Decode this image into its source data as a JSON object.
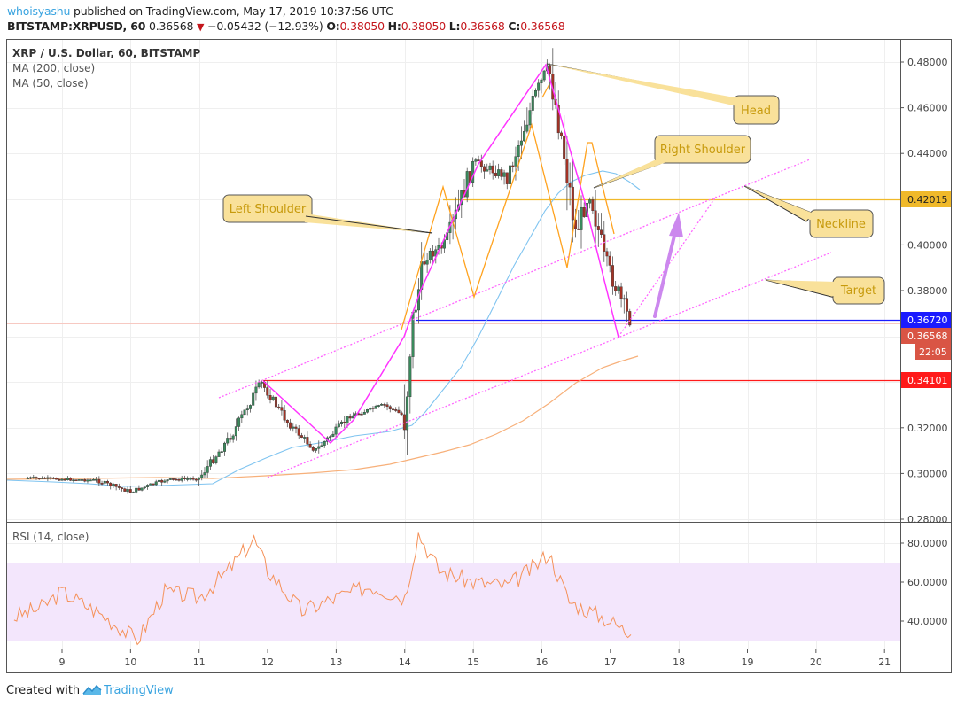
{
  "header": {
    "author": "whoisyashu",
    "published_text": " published on TradingView.com, May 17, 2019 10:37:56 UTC",
    "symbol": "BITSTAMP:XRPUSD, 60",
    "last_price": "0.36568",
    "change_icon": "down-triangle-icon",
    "change": "−0.05432 (−12.93%)",
    "o_label": "O:",
    "o_value": "0.38050",
    "h_label": "H:",
    "h_value": "0.38050",
    "l_label": "L:",
    "l_value": "0.36568",
    "c_label": "C:",
    "c_value": "0.36568"
  },
  "legend": {
    "title": "XRP / U.S. Dollar, 60, BITSTAMP",
    "ma200": "MA (200, close)",
    "ma50": "MA (50, close)",
    "rsi": "RSI (14, close)"
  },
  "footer": {
    "created_with": "Created with",
    "brand": "TradingView",
    "logo_icon": "tradingview-logo-icon"
  },
  "colors": {
    "up_candle": "#3a8a5c",
    "down_candle": "#a33225",
    "ma200": "#f7b07a",
    "ma50": "#7fc4f0",
    "pattern_magenta": "#ff33ff",
    "pattern_orange": "#ffa21e",
    "neckline_level": "#f0b92a",
    "support_blue": "#1b1bff",
    "support_red": "#ff1a1a",
    "current_price": "#d95545",
    "rsi_line": "#f5925a",
    "rsi_band": "#f3e6fc",
    "callout_fill": "#f9e19a",
    "arrow": "#cc88ee"
  },
  "price_tags": [
    {
      "label": "0.42015",
      "bg": "#f0b92a",
      "fg": "#222222"
    },
    {
      "label": "0.36720",
      "bg": "#1b1bff",
      "fg": "#ffffff"
    },
    {
      "label": "0.36568",
      "bg": "#d95545",
      "fg": "#ffffff"
    },
    {
      "label": "22:05",
      "bg": "#d95545",
      "fg": "#ffffff"
    },
    {
      "label": "0.34101",
      "bg": "#ff1a1a",
      "fg": "#ffffff"
    }
  ],
  "annotations": [
    {
      "label": "Left Shoulder"
    },
    {
      "label": "Head"
    },
    {
      "label": "Right Shoulder"
    },
    {
      "label": "Neckline"
    },
    {
      "label": "Target"
    }
  ],
  "chart_data": [
    {
      "type": "candlestick",
      "title": "XRP / U.S. Dollar, 60, BITSTAMP",
      "xlabel": "",
      "ylabel": "",
      "x_ticks": [
        "9",
        "10",
        "11",
        "12",
        "13",
        "14",
        "15",
        "16",
        "17",
        "18",
        "19",
        "20",
        "21"
      ],
      "y_ticks": [
        "0.48000",
        "0.46000",
        "0.44000",
        "0.40000",
        "0.38000",
        "0.32000",
        "0.30000",
        "0.28000"
      ],
      "ylim": [
        0.28,
        0.485
      ],
      "grid": true,
      "approx_close_path": [
        {
          "x": "8.5",
          "y": 0.298
        },
        {
          "x": "9.5",
          "y": 0.297
        },
        {
          "x": "10.0",
          "y": 0.292
        },
        {
          "x": "10.5",
          "y": 0.297
        },
        {
          "x": "11.0",
          "y": 0.298
        },
        {
          "x": "11.5",
          "y": 0.318
        },
        {
          "x": "11.9",
          "y": 0.34
        },
        {
          "x": "12.3",
          "y": 0.322
        },
        {
          "x": "12.7",
          "y": 0.31
        },
        {
          "x": "13.2",
          "y": 0.325
        },
        {
          "x": "13.7",
          "y": 0.33
        },
        {
          "x": "14.0",
          "y": 0.325
        },
        {
          "x": "14.1",
          "y": 0.365
        },
        {
          "x": "14.3",
          "y": 0.395
        },
        {
          "x": "14.6",
          "y": 0.4
        },
        {
          "x": "15.0",
          "y": 0.436
        },
        {
          "x": "15.5",
          "y": 0.43
        },
        {
          "x": "15.9",
          "y": 0.465
        },
        {
          "x": "16.1",
          "y": 0.478
        },
        {
          "x": "16.3",
          "y": 0.445
        },
        {
          "x": "16.5",
          "y": 0.405
        },
        {
          "x": "16.7",
          "y": 0.425
        },
        {
          "x": "16.9",
          "y": 0.395
        },
        {
          "x": "17.1",
          "y": 0.38
        },
        {
          "x": "17.3",
          "y": 0.3657
        }
      ],
      "series": [
        {
          "name": "MA (200, close)",
          "color": "#f7b07a"
        },
        {
          "name": "MA (50, close)",
          "color": "#7fc4f0"
        }
      ],
      "horizontal_levels": [
        {
          "name": "Neckline level",
          "value": 0.42015,
          "color": "#f0b92a"
        },
        {
          "name": "Support",
          "value": 0.3672,
          "color": "#1b1bff"
        },
        {
          "name": "Current price",
          "value": 0.36568,
          "color": "#d95545"
        },
        {
          "name": "Previous high",
          "value": 0.34101,
          "color": "#ff1a1a"
        }
      ],
      "annotations": [
        "Left Shoulder",
        "Head",
        "Right Shoulder",
        "Neckline",
        "Target"
      ],
      "countdown": "22:05"
    },
    {
      "type": "line",
      "title": "RSI (14, close)",
      "y_ticks": [
        "80.0000",
        "60.0000",
        "40.0000"
      ],
      "band": [
        30,
        70
      ],
      "ylim": [
        25,
        90
      ],
      "x": [
        "8.3",
        "8.7",
        "9.0",
        "9.5",
        "9.8",
        "10.1",
        "10.5",
        "11.0",
        "11.4",
        "11.8",
        "12.0",
        "12.5",
        "13.0",
        "13.5",
        "14.0",
        "14.2",
        "14.5",
        "15.0",
        "15.5",
        "15.9",
        "16.1",
        "16.4",
        "16.7",
        "17.0",
        "17.3"
      ],
      "values": [
        42,
        47,
        55,
        45,
        38,
        30,
        55,
        52,
        65,
        82,
        66,
        45,
        52,
        58,
        52,
        85,
        66,
        60,
        58,
        68,
        75,
        50,
        45,
        40,
        33
      ]
    }
  ]
}
